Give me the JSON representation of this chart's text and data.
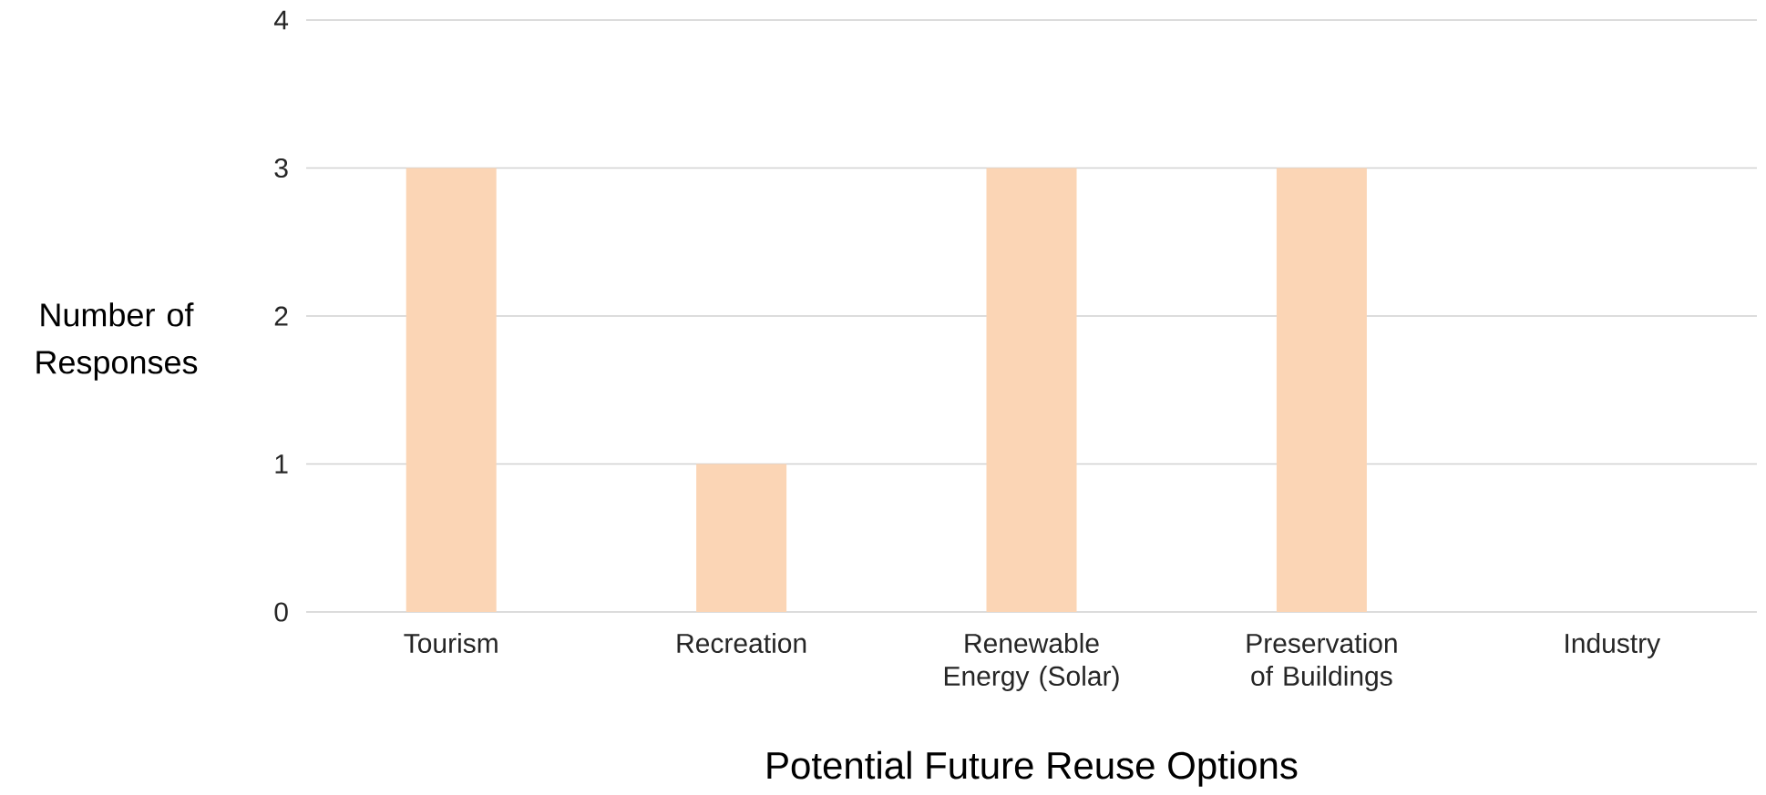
{
  "chart_data": {
    "type": "bar",
    "xlabel": "Potential Future Reuse Options",
    "ylabel": "Number of Responses",
    "categories": [
      "Tourism",
      "Recreation",
      "Renewable Energy (Solar)",
      "Preservation of Buildings",
      "Industry"
    ],
    "values": [
      3,
      1,
      3,
      3,
      0
    ],
    "color": "#fbd5b5",
    "ylim": [
      0,
      4
    ],
    "yticks": [
      0,
      1,
      2,
      3,
      4
    ],
    "grid": "y"
  }
}
